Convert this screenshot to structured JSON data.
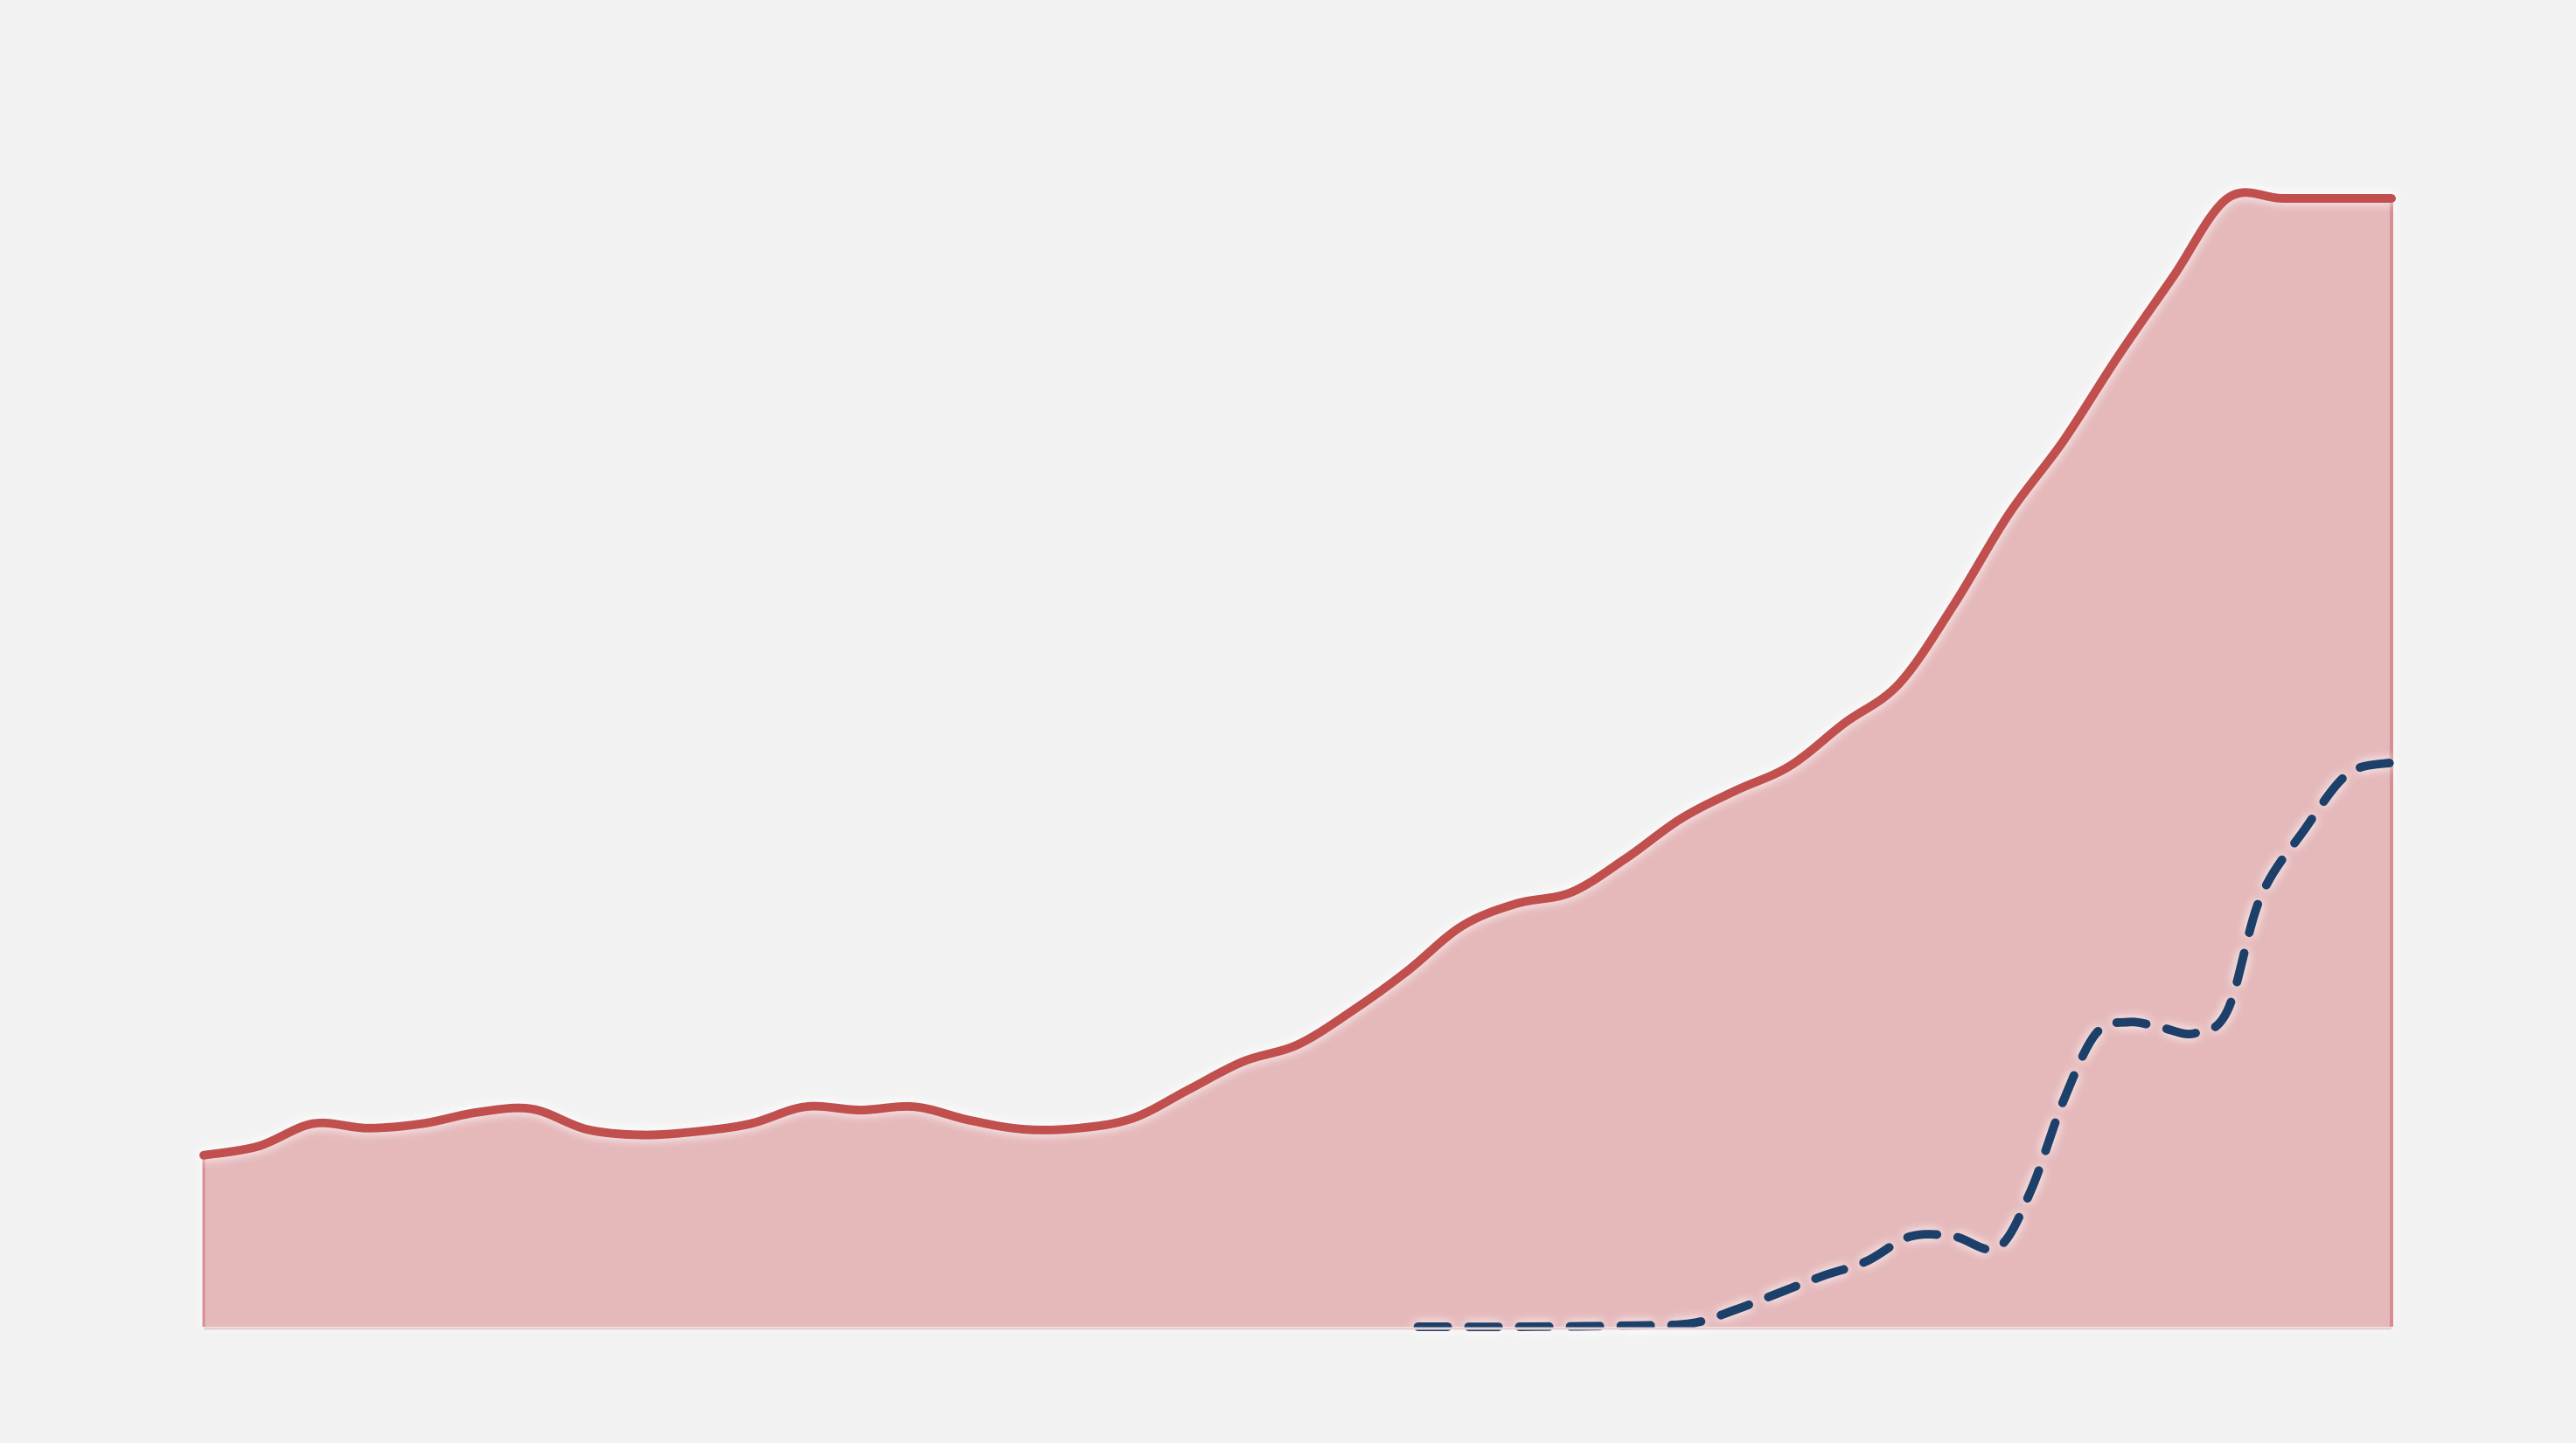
{
  "chart_data": {
    "type": "area",
    "title": "",
    "xlabel": "",
    "ylabel": "",
    "xlim": [
      0,
      100
    ],
    "ylim": [
      0,
      100
    ],
    "grid": false,
    "legend": "none",
    "series": [
      {
        "style": "solid-area",
        "color": "#c0504d",
        "fill": "#e5b8ba",
        "x": [
          0,
          2.5,
          5,
          7.5,
          10,
          12.5,
          15,
          17.5,
          20,
          22.5,
          25,
          27.5,
          30,
          32.5,
          35,
          37.5,
          40,
          42.5,
          45,
          47.5,
          50,
          52.5,
          55,
          57.5,
          60,
          62.5,
          65,
          67.5,
          70,
          72.5,
          75,
          77.5,
          80,
          82.5,
          85,
          87.5,
          90,
          92.5,
          95,
          97.5,
          100
        ],
        "values": [
          15.2,
          16,
          18,
          17.6,
          18,
          19,
          19.3,
          17.5,
          17,
          17.3,
          18,
          19.5,
          19.2,
          19.5,
          18.3,
          17.5,
          17.6,
          18.5,
          21,
          23.5,
          25,
          28,
          31.5,
          35.5,
          37.5,
          38.5,
          41.5,
          45,
          47.5,
          49.7,
          53.5,
          57,
          64,
          72,
          78.5,
          86,
          93,
          100,
          100,
          100,
          100
        ]
      },
      {
        "style": "dashed",
        "color": "#1f3f6b",
        "x": [
          55.5,
          60,
          65,
          68,
          70,
          72,
          74,
          76,
          78,
          80,
          82,
          83.5,
          85,
          86.5,
          88,
          89.5,
          91,
          92.5,
          94,
          96,
          98,
          100
        ],
        "values": [
          0,
          0,
          0.1,
          0.3,
          1.5,
          3,
          4.5,
          5.8,
          8,
          8,
          7,
          12,
          20,
          26,
          27,
          26.5,
          26,
          28,
          38,
          44,
          49,
          50
        ]
      }
    ]
  }
}
